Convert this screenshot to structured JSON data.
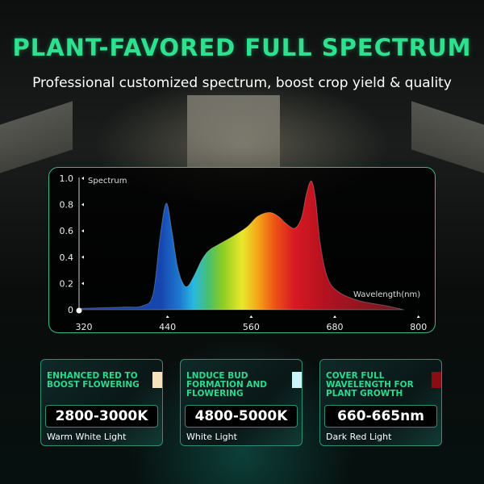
{
  "header": {
    "title": "PLANT-FAVORED FULL SPECTRUM",
    "subtitle": "Professional customized spectrum, boost crop yield & quality"
  },
  "chart_data": {
    "type": "area",
    "ylabel": "Spectrum",
    "xlabel": "Wavelength(nm)",
    "xlim": [
      320,
      800
    ],
    "ylim": [
      0,
      1.0
    ],
    "xticks": [
      320,
      440,
      560,
      680,
      800
    ],
    "yticks": [
      0,
      0.2,
      0.4,
      0.6,
      0.8,
      1.0
    ],
    "ytick_labels": [
      "0",
      "0.2",
      "0.4",
      "0.6",
      "0.8",
      "1.0"
    ],
    "grid": false,
    "fill": "rainbow spectrum gradient",
    "x": [
      320,
      380,
      410,
      425,
      435,
      444,
      452,
      460,
      468,
      475,
      485,
      495,
      505,
      520,
      540,
      560,
      575,
      592,
      605,
      615,
      628,
      638,
      645,
      652,
      658,
      665,
      675,
      690,
      720,
      760,
      785
    ],
    "y": [
      0.01,
      0.02,
      0.03,
      0.12,
      0.55,
      0.81,
      0.6,
      0.33,
      0.2,
      0.18,
      0.27,
      0.38,
      0.45,
      0.5,
      0.56,
      0.63,
      0.71,
      0.74,
      0.71,
      0.66,
      0.62,
      0.7,
      0.88,
      0.98,
      0.85,
      0.5,
      0.25,
      0.14,
      0.07,
      0.03,
      0.0
    ]
  },
  "cards": [
    {
      "heading": "ENHANCED RED TO BOOST FLOWERING",
      "value": "2800-3000K",
      "label": "Warm White Light",
      "swatch": "#f7e2bd"
    },
    {
      "heading": "LNDUCE BUD FORMATION AND FLOWERING",
      "value": "4800-5000K",
      "label": "White Light",
      "swatch": "#c8f6f6"
    },
    {
      "heading": "COVER FULL WAVELENGTH FOR PLANT GROWTH",
      "value": "660-665nm",
      "label": "Dark Red Light",
      "swatch": "#8c0c14"
    }
  ]
}
